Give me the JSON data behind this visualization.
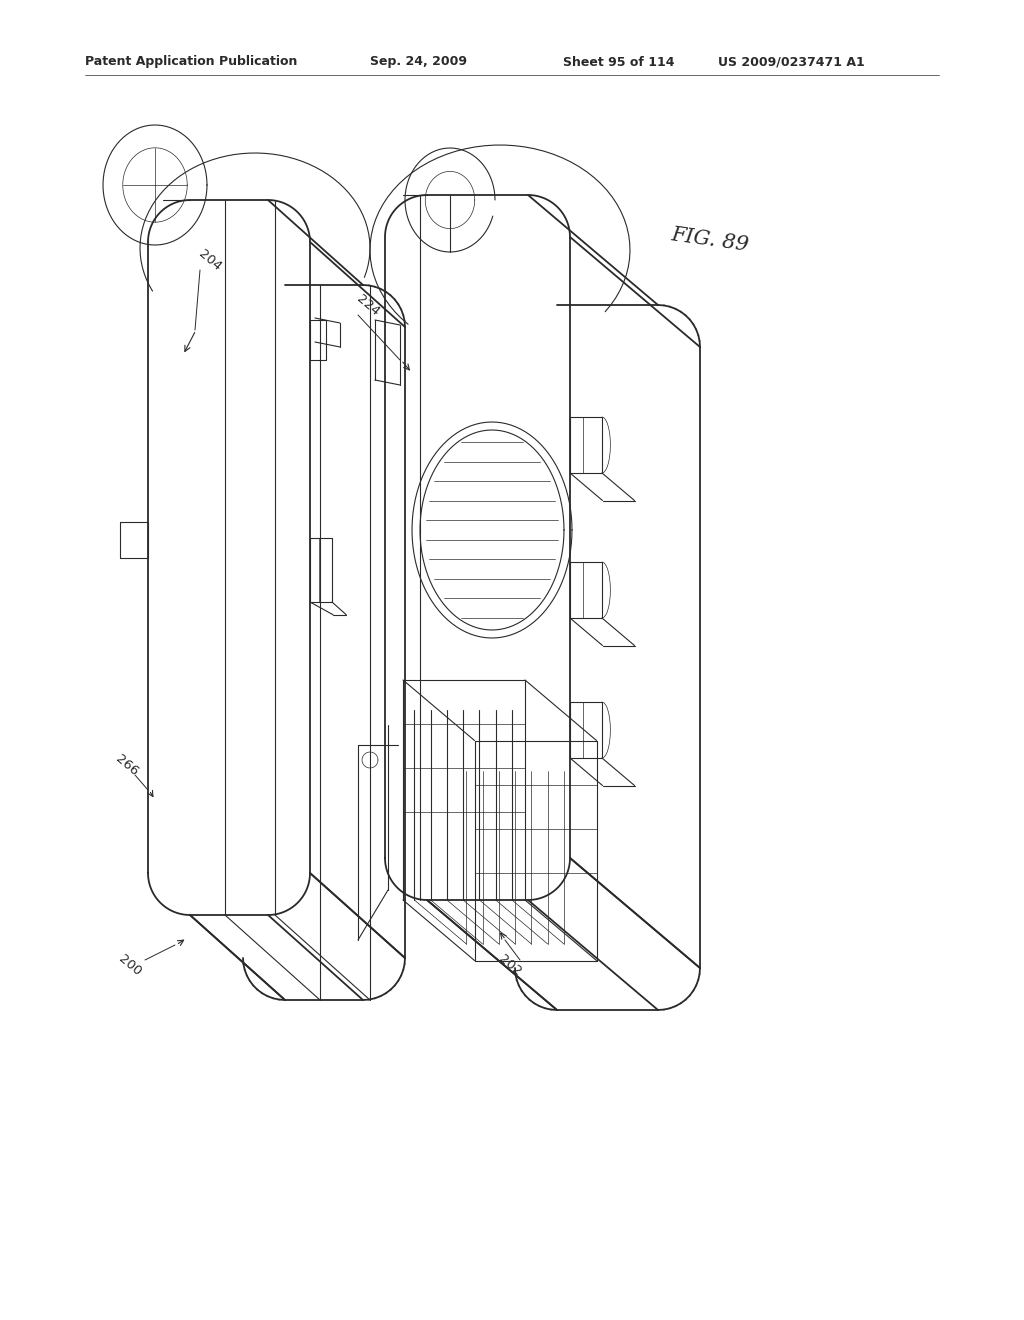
{
  "background_color": "#ffffff",
  "header_text": "Patent Application Publication",
  "header_date": "Sep. 24, 2009",
  "header_sheet": "Sheet 95 of 114",
  "header_patent": "US 2009/0237471 A1",
  "fig_label": "FIG. 89",
  "line_color": "#2a2a2a",
  "label_fontsize": 9.5,
  "header_fontsize": 9,
  "fig_fontsize": 15
}
